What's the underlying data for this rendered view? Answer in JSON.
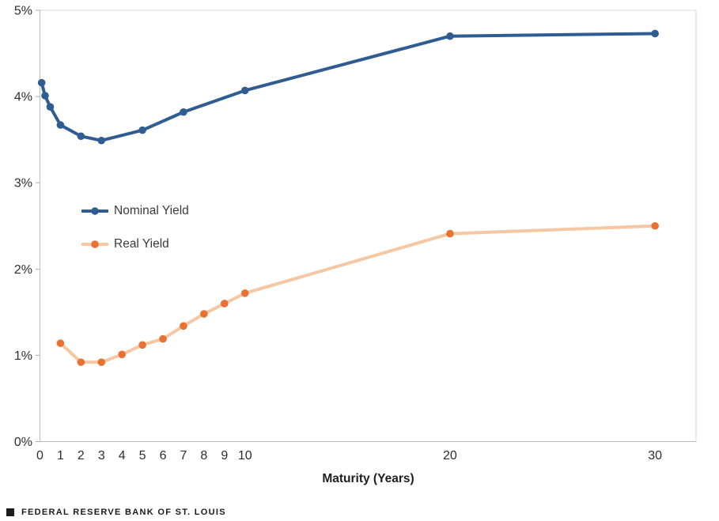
{
  "footer": {
    "brand": "FEDERAL RESERVE BANK OF ST. LOUIS"
  },
  "legend": {
    "items": [
      {
        "label": "Nominal Yield",
        "line_color": "#2F5D92",
        "marker_color": "#2F5D92"
      },
      {
        "label": "Real Yield",
        "line_color": "#F5C7A2",
        "marker_color": "#E97132"
      }
    ]
  },
  "colors": {
    "plot_border": "#D9D9D9",
    "axis_line": "#BFBFBF",
    "tick_mark": "#ADADAD",
    "tick_text": "#2e2e2e"
  },
  "chart_data": {
    "type": "line",
    "title": "",
    "xlabel": "Maturity (Years)",
    "ylabel": "",
    "xlim": [
      0,
      32
    ],
    "ylim": [
      0,
      5
    ],
    "grid": false,
    "legend_position": "inside-upper-left",
    "x_ticks": {
      "values": [
        0,
        1,
        2,
        3,
        4,
        5,
        6,
        7,
        8,
        9,
        10,
        20,
        30
      ],
      "labels": [
        "0",
        "1",
        "2",
        "3",
        "4",
        "5",
        "6",
        "7",
        "8",
        "9",
        "10",
        "20",
        "30"
      ]
    },
    "y_ticks": {
      "values": [
        0,
        1,
        2,
        3,
        4,
        5
      ],
      "labels": [
        "0%",
        "1%",
        "2%",
        "3%",
        "4%",
        "5%"
      ]
    },
    "series": [
      {
        "name": "Nominal Yield",
        "x": [
          0.083,
          0.25,
          0.5,
          1,
          2,
          3,
          5,
          7,
          10,
          20,
          30
        ],
        "values": [
          4.16,
          4.01,
          3.88,
          3.67,
          3.54,
          3.49,
          3.61,
          3.82,
          4.07,
          4.7,
          4.73
        ],
        "line_color": "#2F5D92",
        "marker_color": "#2F5D92",
        "line_width": 4,
        "marker_radius": 4.8
      },
      {
        "name": "Real Yield",
        "x": [
          1,
          2,
          3,
          4,
          5,
          6,
          7,
          8,
          9,
          10,
          20,
          30
        ],
        "values": [
          1.14,
          0.92,
          0.92,
          1.01,
          1.12,
          1.19,
          1.34,
          1.48,
          1.6,
          1.72,
          2.41,
          2.5
        ],
        "line_color": "#F5C7A2",
        "marker_color": "#E97132",
        "line_width": 4,
        "marker_radius": 4.8
      }
    ]
  }
}
